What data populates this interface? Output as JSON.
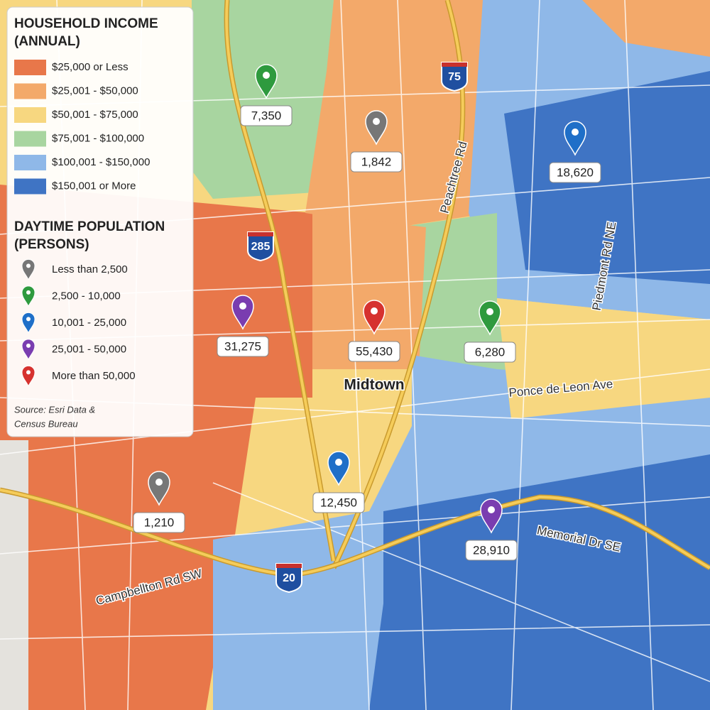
{
  "legend": {
    "income_title": [
      "HOUSEHOLD INCOME",
      "(ANNUAL)"
    ],
    "income_items": [
      {
        "label": "$25,000 or Less",
        "color": "#e8774a"
      },
      {
        "label": "$25,001 - $50,000",
        "color": "#f3a96a"
      },
      {
        "label": "$50,001 - $75,000",
        "color": "#f7d780"
      },
      {
        "label": "$75,001 - $100,000",
        "color": "#a8d5a0"
      },
      {
        "label": "$100,001 - $150,000",
        "color": "#8fb8e8"
      },
      {
        "label": "$150,001 or More",
        "color": "#3f74c4"
      }
    ],
    "population_title": [
      "DAYTIME POPULATION",
      "(PERSONS)"
    ],
    "population_items": [
      {
        "label": "Less than 2,500",
        "color": "#777777"
      },
      {
        "label": "2,500 - 10,000",
        "color": "#2e9a3e"
      },
      {
        "label": "10,001 - 25,000",
        "color": "#1f6fc8"
      },
      {
        "label": "25,001 - 50,000",
        "color": "#7a3db0"
      },
      {
        "label": "More than 50,000",
        "color": "#d6322f"
      }
    ],
    "source": [
      "Source: Esri Data &",
      "Census Bureau"
    ]
  },
  "markers": [
    {
      "label": "7,350",
      "color": "#2e9a3e"
    },
    {
      "label": "1,842",
      "color": "#777777"
    },
    {
      "label": "18,620",
      "color": "#1f6fc8"
    },
    {
      "label": "31,275",
      "color": "#7a3db0"
    },
    {
      "label": "55,430",
      "color": "#d6322f"
    },
    {
      "label": "6,280",
      "color": "#2e9a3e"
    },
    {
      "label": "12,450",
      "color": "#1f6fc8"
    },
    {
      "label": "1,210",
      "color": "#777777"
    },
    {
      "label": "28,910",
      "color": "#7a3db0"
    }
  ],
  "road_labels": [
    "Peachtree Rd",
    "Piedmont Rd NE",
    "Ponce de Leon Ave",
    "Memorial Dr SE",
    "Campbellton Rd SW"
  ],
  "highways": [
    "75",
    "285",
    "20"
  ],
  "place": "Midtown"
}
